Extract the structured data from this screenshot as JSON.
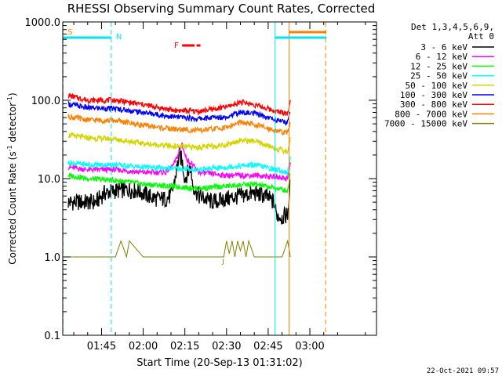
{
  "chart_data": {
    "type": "line",
    "title": "RHESSI Observing Summary Count Rates, Corrected",
    "xlabel": "Start Time (20-Sep-13 01:31:02)",
    "ylabel_html": "Corrected Count Rate (s⁻¹ detector⁻¹)",
    "ylabel": "Corrected Count Rate (s-1 detector-1)",
    "yscale": "log",
    "ylim": [
      0.1,
      1000
    ],
    "xlim_min": [
      91.03,
      204.0
    ],
    "x_unit": "minutes after 00:00 UT, 20-Sep-13",
    "y_ticks": [
      {
        "value": 0.1,
        "label": "0.1"
      },
      {
        "value": 1.0,
        "label": "1.0"
      },
      {
        "value": 10.0,
        "label": "10.0"
      },
      {
        "value": 100.0,
        "label": "100.0"
      },
      {
        "value": 1000.0,
        "label": "1000.0"
      }
    ],
    "x_ticks": [
      {
        "value": 105,
        "label": "01:45"
      },
      {
        "value": 120,
        "label": "02:00"
      },
      {
        "value": 135,
        "label": "02:15"
      },
      {
        "value": 150,
        "label": "02:30"
      },
      {
        "value": 165,
        "label": "02:45"
      },
      {
        "value": 180,
        "label": "03:00"
      }
    ],
    "legend": {
      "placement": "right",
      "header": [
        "Det 1,3,4,5,6,9,",
        "Att 0"
      ]
    },
    "series": [
      {
        "name": "3 - 6 keV",
        "color": "#000000",
        "x": [
          93,
          96,
          100,
          103,
          106,
          110,
          114,
          118,
          122,
          125,
          128,
          130,
          131,
          132,
          133,
          134,
          135,
          137,
          138,
          140,
          145,
          150,
          155,
          160,
          164,
          167,
          168,
          170,
          172,
          173
        ],
        "y": [
          5,
          5,
          5,
          5,
          6.5,
          7,
          7.2,
          7,
          6,
          5.5,
          5.5,
          6,
          8,
          13,
          20,
          17,
          10,
          14,
          8,
          6,
          5,
          5.5,
          6,
          6.5,
          6,
          5,
          3.5,
          3.2,
          3.5,
          9
        ]
      },
      {
        "name": "6 - 12 keV",
        "color": "#ff00ff",
        "x": [
          93,
          100,
          110,
          120,
          128,
          131,
          133,
          134,
          135,
          136,
          137,
          140,
          150,
          160,
          168,
          172,
          173
        ],
        "y": [
          14,
          13,
          13,
          12,
          12,
          15,
          22,
          28,
          20,
          17,
          16,
          12,
          11,
          11,
          10.5,
          10,
          16
        ]
      },
      {
        "name": "12 - 25 keV",
        "color": "#00ff00",
        "x": [
          93,
          100,
          110,
          120,
          130,
          140,
          150,
          160,
          168,
          172,
          173
        ],
        "y": [
          11,
          10,
          9.5,
          8.5,
          8,
          7.5,
          8,
          8.5,
          7.5,
          7,
          12
        ]
      },
      {
        "name": "25 - 50 keV",
        "color": "#00ffff",
        "x": [
          93,
          100,
          110,
          120,
          130,
          140,
          150,
          160,
          168,
          172,
          173
        ],
        "y": [
          16,
          15,
          15,
          14,
          13.5,
          13,
          14,
          15,
          13,
          12,
          18
        ]
      },
      {
        "name": "50 - 100 keV",
        "color": "#d4d400",
        "x": [
          93,
          100,
          110,
          120,
          130,
          140,
          150,
          155,
          160,
          168,
          172,
          173
        ],
        "y": [
          36,
          33,
          32,
          28,
          26,
          25,
          27,
          31,
          30,
          24,
          22,
          33
        ]
      },
      {
        "name": "100 - 300 keV",
        "color": "#0000ff",
        "x": [
          93,
          100,
          110,
          120,
          130,
          140,
          150,
          155,
          160,
          168,
          172,
          173
        ],
        "y": [
          90,
          80,
          78,
          70,
          62,
          58,
          62,
          70,
          68,
          56,
          52,
          75
        ]
      },
      {
        "name": "300 - 800 keV",
        "color": "#ff0000",
        "x": [
          93,
          100,
          110,
          120,
          130,
          140,
          150,
          155,
          160,
          168,
          172,
          173
        ],
        "y": [
          115,
          100,
          100,
          88,
          75,
          72,
          82,
          95,
          88,
          72,
          68,
          95
        ]
      },
      {
        "name": "800 - 7000 keV",
        "color": "#ff8000",
        "x": [
          93,
          100,
          110,
          120,
          130,
          140,
          150,
          155,
          160,
          168,
          172,
          173
        ],
        "y": [
          62,
          56,
          55,
          48,
          43,
          41,
          45,
          52,
          49,
          41,
          38,
          55
        ]
      },
      {
        "name": "7000 - 15000 keV",
        "color": "#808000",
        "x": [
          93,
          100,
          110,
          112,
          114,
          115,
          120,
          130,
          140,
          149,
          150,
          151,
          152,
          153,
          154,
          155,
          156,
          157,
          158,
          160,
          170,
          172,
          173
        ],
        "y": [
          1,
          1,
          1,
          1.6,
          1,
          1.6,
          1,
          1,
          1,
          1,
          1.6,
          1.1,
          1.6,
          1,
          1.6,
          1.2,
          1.6,
          1,
          1.6,
          1,
          1,
          1.6,
          1
        ]
      }
    ],
    "annotations": {
      "saa": {
        "label": "S",
        "color": "#ff8000",
        "x_start": 91.1,
        "x_end": 108.5
      },
      "night": {
        "label": "N",
        "color": "#00e5ee",
        "x_start": 108.5
      },
      "flare": {
        "label": "F",
        "color": "#ff0000",
        "segments": [
          [
            134.0,
            138.5
          ],
          [
            139.2,
            140.6
          ]
        ]
      },
      "j_marker": {
        "label": "J",
        "x": 149.0
      },
      "end_bars": [
        {
          "color": "#00e5ee",
          "x_start": 167.5,
          "x_end": 186.0,
          "level": "lower"
        },
        {
          "color": "#ff8000",
          "x_start": 172.5,
          "x_end": 186.0,
          "level": "upper"
        }
      ],
      "vlines": [
        {
          "x": 91.1,
          "color": "#00e5ee",
          "style": "dashed"
        },
        {
          "x": 108.5,
          "color": "#00e5ee",
          "style": "dashed"
        },
        {
          "x": 167.5,
          "color": "#00e5ee",
          "style": "solid"
        },
        {
          "x": 172.5,
          "color": "#ff8000",
          "style": "solid"
        },
        {
          "x": 185.7,
          "color": "#ff8000",
          "style": "dashed"
        }
      ]
    }
  },
  "footer": {
    "timestamp": "22-Oct-2021 09:57"
  }
}
